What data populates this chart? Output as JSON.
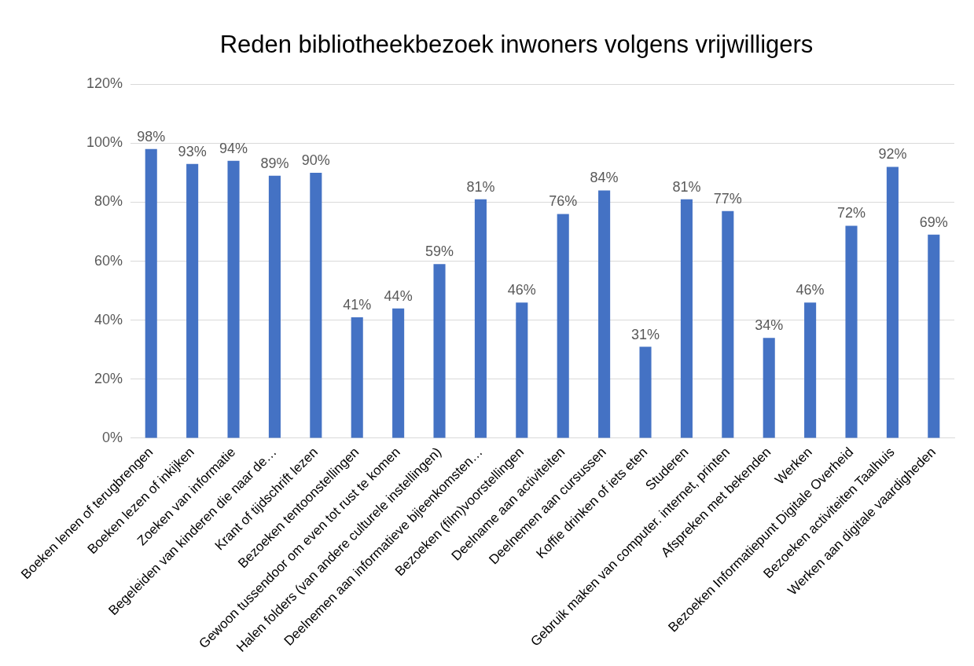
{
  "chart_data": {
    "type": "bar",
    "title": "Reden bibliotheekbezoek inwoners volgens vrijwilligers",
    "categories": [
      "Boeken lenen of terugbrengen",
      "Boeken lezen of inkijken",
      "Zoeken van informatie",
      "Begeleiden van kinderen die naar de…",
      "Krant of tijdschrift lezen",
      "Bezoeken tentoonstellingen",
      "Gewoon tussendoor om even tot rust te komen",
      "Halen folders (van andere culturele instellingen)",
      "Deelnemen aan informatieve bijeenkomsten…",
      "Bezoeken (film)voorstellingen",
      "Deelname aan activiteiten",
      "Deelnemen aan cursussen",
      "Koffie drinken of iets eten",
      "Studeren",
      "Gebruik maken van computer. internet, printen",
      "Afspreken met bekenden",
      "Werken",
      "Bezoeken Informatiepunt Digitale Overheid",
      "Bezoeken activiteiten Taalhuis",
      "Werken aan digitale vaardigheden"
    ],
    "values": [
      98,
      93,
      94,
      89,
      90,
      41,
      44,
      59,
      81,
      46,
      76,
      84,
      31,
      81,
      77,
      34,
      46,
      72,
      92,
      69
    ],
    "value_labels": [
      "98%",
      "93%",
      "94%",
      "89%",
      "90%",
      "41%",
      "44%",
      "59%",
      "81%",
      "46%",
      "76%",
      "84%",
      "31%",
      "81%",
      "77%",
      "34%",
      "46%",
      "72%",
      "92%",
      "69%"
    ],
    "color": "#4472c4",
    "ylim": [
      0,
      120
    ],
    "yticks": [
      {
        "value": 0,
        "label": "0%"
      },
      {
        "value": 20,
        "label": "20%"
      },
      {
        "value": 40,
        "label": "40%"
      },
      {
        "value": 60,
        "label": "60%"
      },
      {
        "value": 80,
        "label": "80%"
      },
      {
        "value": 100,
        "label": "100%"
      },
      {
        "value": 120,
        "label": "120%"
      }
    ],
    "grid": "y",
    "legend": false
  }
}
